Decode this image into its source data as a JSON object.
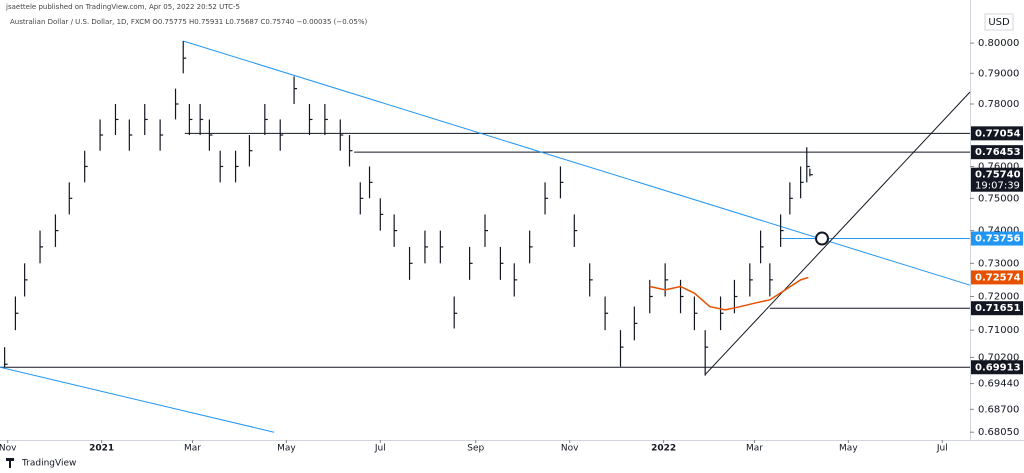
{
  "chart_data": {
    "type": "ohlc",
    "header": "jsaettele published on TradingView.com, Apr 05, 2022 20:52 UTC-5",
    "legend": "Australian Dollar / U.S. Dollar, 1D, FXCM  O0.75775 H0.75931 L0.75687 C0.75740 −0.00035 (−0.05%)",
    "currency": "USD",
    "footer": "TradingView",
    "log_scale": true,
    "color": "#131722",
    "xlim": [
      -5,
      625
    ],
    "xticks": [
      {
        "value": 0,
        "label": "Nov"
      },
      {
        "value": 61,
        "label": "2021"
      },
      {
        "value": 120,
        "label": "Mar"
      },
      {
        "value": 181,
        "label": "May"
      },
      {
        "value": 242,
        "label": "Jul"
      },
      {
        "value": 304,
        "label": "Sep"
      },
      {
        "value": 365,
        "label": "Nov"
      },
      {
        "value": 426,
        "label": "2022"
      },
      {
        "value": 485,
        "label": "Mar"
      },
      {
        "value": 546,
        "label": "May"
      },
      {
        "value": 607,
        "label": "Jul"
      }
    ],
    "ylim": [
      0.6783,
      0.8094
    ],
    "yticks": [
      {
        "value": 0.8,
        "label": "0.80000"
      },
      {
        "value": 0.79,
        "label": "0.79000"
      },
      {
        "value": 0.78,
        "label": "0.78000"
      },
      {
        "value": 0.76,
        "label": "0.76000"
      },
      {
        "value": 0.75,
        "label": "0.75000"
      },
      {
        "value": 0.74,
        "label": "0.74000"
      },
      {
        "value": 0.73,
        "label": "0.73000"
      },
      {
        "value": 0.72,
        "label": "0.72000"
      },
      {
        "value": 0.71,
        "label": "0.71000"
      },
      {
        "value": 0.702,
        "label": "0.70200"
      },
      {
        "value": 0.6944,
        "label": "0.69440"
      },
      {
        "value": 0.687,
        "label": "0.68700"
      },
      {
        "value": 0.6805,
        "label": "0.68050"
      }
    ],
    "x": [
      -2,
      5,
      11,
      21,
      31,
      40,
      50,
      60,
      70,
      79,
      89,
      99,
      109,
      114,
      118,
      125,
      131,
      138,
      148,
      157,
      167,
      177,
      186,
      196,
      206,
      216,
      222,
      229,
      235,
      242,
      251,
      261,
      271,
      281,
      290,
      300,
      310,
      320,
      329,
      339,
      349,
      359,
      368,
      378,
      388,
      398,
      407,
      417,
      427,
      437,
      446,
      453,
      463,
      472,
      482,
      489,
      495,
      502,
      508,
      515,
      519,
      521
    ],
    "high": [
      0.705,
      0.72,
      0.73,
      0.74,
      0.745,
      0.755,
      0.765,
      0.775,
      0.78,
      0.775,
      0.78,
      0.775,
      0.785,
      0.8007,
      0.78,
      0.78,
      0.775,
      0.765,
      0.765,
      0.77,
      0.78,
      0.775,
      0.789,
      0.78,
      0.78,
      0.775,
      0.77,
      0.755,
      0.76,
      0.75,
      0.745,
      0.735,
      0.74,
      0.74,
      0.72,
      0.735,
      0.745,
      0.735,
      0.73,
      0.74,
      0.755,
      0.76,
      0.745,
      0.73,
      0.72,
      0.71,
      0.717,
      0.725,
      0.73,
      0.725,
      0.72,
      0.71,
      0.72,
      0.725,
      0.73,
      0.74,
      0.73,
      0.745,
      0.755,
      0.76,
      0.7661,
      0.75931
    ],
    "low": [
      0.6991,
      0.71,
      0.72,
      0.73,
      0.735,
      0.745,
      0.755,
      0.765,
      0.77,
      0.765,
      0.77,
      0.765,
      0.775,
      0.79,
      0.77,
      0.77,
      0.765,
      0.755,
      0.755,
      0.76,
      0.77,
      0.765,
      0.78,
      0.77,
      0.77,
      0.765,
      0.76,
      0.745,
      0.75,
      0.74,
      0.735,
      0.725,
      0.73,
      0.73,
      0.7105,
      0.725,
      0.735,
      0.725,
      0.72,
      0.73,
      0.745,
      0.75,
      0.735,
      0.72,
      0.71,
      0.6993,
      0.707,
      0.715,
      0.72,
      0.715,
      0.71,
      0.6967,
      0.71,
      0.715,
      0.72,
      0.73,
      0.72,
      0.735,
      0.745,
      0.75,
      0.755,
      0.75687
    ],
    "close": [
      0.7,
      0.715,
      0.725,
      0.735,
      0.74,
      0.75,
      0.76,
      0.77,
      0.775,
      0.77,
      0.775,
      0.77,
      0.78,
      0.795,
      0.775,
      0.775,
      0.77,
      0.76,
      0.76,
      0.765,
      0.775,
      0.77,
      0.785,
      0.775,
      0.775,
      0.77,
      0.765,
      0.75,
      0.755,
      0.745,
      0.74,
      0.73,
      0.735,
      0.735,
      0.715,
      0.73,
      0.74,
      0.73,
      0.725,
      0.735,
      0.75,
      0.755,
      0.74,
      0.725,
      0.715,
      0.705,
      0.712,
      0.72,
      0.725,
      0.72,
      0.715,
      0.705,
      0.715,
      0.72,
      0.725,
      0.735,
      0.725,
      0.74,
      0.75,
      0.755,
      0.76,
      0.7574
    ],
    "last": {
      "value": 0.7574,
      "label": "0.75740"
    },
    "countdown": "19:07:39",
    "moving_average": {
      "color": "#e65100",
      "value": 0.72574,
      "x": [
        417,
        427,
        437,
        446,
        456,
        466,
        476,
        485,
        495,
        505,
        515,
        520
      ],
      "values": [
        0.723,
        0.722,
        0.723,
        0.721,
        0.717,
        0.716,
        0.717,
        0.718,
        0.719,
        0.722,
        0.725,
        0.72574
      ]
    },
    "levels": [
      {
        "value": 0.77054,
        "from": 115,
        "color": "#131722"
      },
      {
        "value": 0.76453,
        "from": 225,
        "color": "#131722"
      },
      {
        "value": 0.73756,
        "from": 502,
        "color": "#2196f3"
      },
      {
        "value": 0.71651,
        "from": 495,
        "color": "#131722"
      },
      {
        "value": 0.69913,
        "from": -5,
        "color": "#131722"
      }
    ],
    "trendlines": [
      {
        "color": "#2196f3",
        "x": [
          114,
          625
        ],
        "y": [
          0.8007,
          0.7234
        ]
      },
      {
        "color": "#2196f3",
        "x": [
          -5,
          173
        ],
        "y": [
          0.69913,
          0.6805
        ]
      },
      {
        "color": "#131722",
        "x": [
          453,
          625
        ],
        "y": [
          0.697,
          0.7839
        ]
      }
    ]
  }
}
